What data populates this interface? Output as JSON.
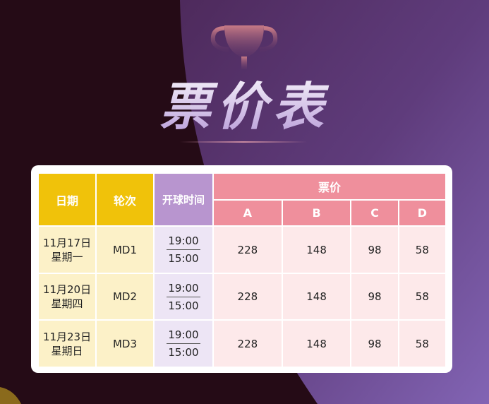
{
  "title": "票价表",
  "colors": {
    "date_header": "#f0c20a",
    "time_header": "#b895cf",
    "price_header": "#ef8f9c"
  },
  "table": {
    "headers": {
      "date": "日期",
      "round": "轮次",
      "time": "开球时间",
      "price": "票价",
      "tiers": [
        "A",
        "B",
        "C",
        "D"
      ]
    },
    "rows": [
      {
        "date": "11月17日",
        "weekday": "星期一",
        "round": "MD1",
        "time1": "19:00",
        "time2": "15:00",
        "prices": [
          "228",
          "148",
          "98",
          "58"
        ]
      },
      {
        "date": "11月20日",
        "weekday": "星期四",
        "round": "MD2",
        "time1": "19:00",
        "time2": "15:00",
        "prices": [
          "228",
          "148",
          "98",
          "58"
        ]
      },
      {
        "date": "11月23日",
        "weekday": "星期日",
        "round": "MD3",
        "time1": "19:00",
        "time2": "15:00",
        "prices": [
          "228",
          "148",
          "98",
          "58"
        ]
      }
    ]
  }
}
